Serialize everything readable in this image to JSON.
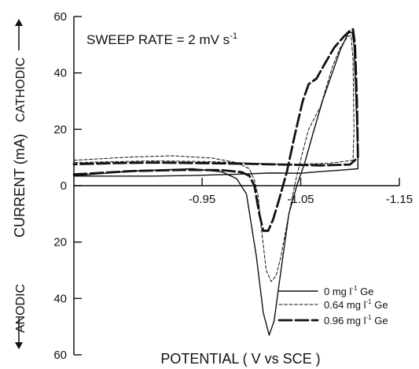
{
  "chart_data": {
    "type": "line",
    "annotation": {
      "prefix": "SWEEP RATE = 2 mV  s",
      "superscript": "-1"
    },
    "axes": {
      "x": {
        "label": "POTENTIAL  ( V vs SCE )",
        "range": [
          -0.82,
          -1.15
        ],
        "ticks": [
          -0.95,
          -1.05,
          -1.15
        ],
        "tick_labels": [
          "-0.95",
          "-1.05",
          "-1.15"
        ],
        "direction": "decreasing"
      },
      "y": {
        "label_main": "CURRENT (mA)",
        "label_upper": "CATHODIC",
        "label_lower": "ANODIC",
        "range": [
          -60,
          60
        ],
        "ticks": [
          60,
          40,
          20,
          0,
          -20,
          -40,
          -60
        ],
        "tick_labels": [
          "60",
          "40",
          "20",
          "0",
          "20",
          "40",
          "60"
        ]
      }
    },
    "legend": {
      "position": "bottom-right",
      "entries": [
        {
          "label_prefix": "0 mg l",
          "label_suffix": " Ge",
          "superscript": "-1",
          "style": "solid-thin"
        },
        {
          "label_prefix": "0.64 mg l",
          "label_suffix": " Ge",
          "superscript": "-1",
          "style": "dashed-short"
        },
        {
          "label_prefix": "0.96 mg l",
          "label_suffix": " Ge",
          "superscript": "-1",
          "style": "dashed-long"
        }
      ]
    },
    "series": [
      {
        "style": "solid-thin",
        "points": [
          [
            -0.82,
            3.5
          ],
          [
            -0.88,
            5.2
          ],
          [
            -0.94,
            6.0
          ],
          [
            -0.97,
            4.9
          ],
          [
            -0.985,
            2.5
          ],
          [
            -0.995,
            -3
          ],
          [
            -1.005,
            -25
          ],
          [
            -1.012,
            -45
          ],
          [
            -1.018,
            -53
          ],
          [
            -1.023,
            -48
          ],
          [
            -1.03,
            -30
          ],
          [
            -1.038,
            -10
          ],
          [
            -1.046,
            0
          ],
          [
            -1.054,
            8
          ],
          [
            -1.062,
            18
          ],
          [
            -1.072,
            30
          ],
          [
            -1.082,
            40
          ],
          [
            -1.09,
            48
          ],
          [
            -1.098,
            54
          ],
          [
            -1.102,
            54.5
          ],
          [
            -1.104,
            50
          ],
          [
            -1.106,
            30
          ],
          [
            -1.108,
            10
          ],
          [
            -1.108,
            6
          ],
          [
            -1.09,
            5.5
          ],
          [
            -1.07,
            5.0
          ],
          [
            -1.05,
            4.4
          ],
          [
            -1.02,
            4.5
          ],
          [
            -0.98,
            4.0
          ],
          [
            -0.94,
            3.6
          ],
          [
            -0.9,
            3.4
          ],
          [
            -0.82,
            3.4
          ]
        ]
      },
      {
        "style": "dashed-short",
        "points": [
          [
            -0.82,
            9
          ],
          [
            -0.88,
            10.2
          ],
          [
            -0.92,
            10.6
          ],
          [
            -0.96,
            9.8
          ],
          [
            -0.985,
            8.2
          ],
          [
            -0.998,
            6
          ],
          [
            -1.003,
            2
          ],
          [
            -1.007,
            -4
          ],
          [
            -1.01,
            -15
          ],
          [
            -1.015,
            -30
          ],
          [
            -1.02,
            -34
          ],
          [
            -1.025,
            -32
          ],
          [
            -1.03,
            -25
          ],
          [
            -1.038,
            -10
          ],
          [
            -1.045,
            2
          ],
          [
            -1.052,
            12
          ],
          [
            -1.058,
            20
          ],
          [
            -1.064,
            24
          ],
          [
            -1.07,
            28
          ],
          [
            -1.076,
            35
          ],
          [
            -1.082,
            42
          ],
          [
            -1.09,
            49
          ],
          [
            -1.098,
            53
          ],
          [
            -1.101,
            53.2
          ],
          [
            -1.103,
            45
          ],
          [
            -1.104,
            20
          ],
          [
            -1.103,
            9
          ],
          [
            -1.08,
            8
          ],
          [
            -1.05,
            7.6
          ],
          [
            -1.03,
            7.6
          ],
          [
            -1.0,
            8
          ],
          [
            -0.96,
            8.5
          ],
          [
            -0.9,
            8.8
          ],
          [
            -0.82,
            8.2
          ]
        ]
      },
      {
        "style": "dashed-long",
        "points": [
          [
            -0.82,
            4
          ],
          [
            -0.88,
            5.2
          ],
          [
            -0.93,
            5.6
          ],
          [
            -0.97,
            5.5
          ],
          [
            -0.99,
            4.8
          ],
          [
            -0.998,
            3.5
          ],
          [
            -1.003,
            0
          ],
          [
            -1.008,
            -10
          ],
          [
            -1.012,
            -16
          ],
          [
            -1.017,
            -16
          ],
          [
            -1.022,
            -12
          ],
          [
            -1.028,
            -5
          ],
          [
            -1.036,
            5
          ],
          [
            -1.044,
            18
          ],
          [
            -1.052,
            30
          ],
          [
            -1.058,
            36
          ],
          [
            -1.066,
            38
          ],
          [
            -1.074,
            43
          ],
          [
            -1.084,
            49
          ],
          [
            -1.094,
            53
          ],
          [
            -1.1,
            55
          ],
          [
            -1.103,
            55.5
          ],
          [
            -1.105,
            50
          ],
          [
            -1.107,
            30
          ],
          [
            -1.108,
            10
          ],
          [
            -1.1,
            7.5
          ],
          [
            -1.07,
            7.2
          ],
          [
            -1.03,
            7.5
          ],
          [
            -0.99,
            7.8
          ],
          [
            -0.95,
            8
          ],
          [
            -0.9,
            8.2
          ],
          [
            -0.86,
            8
          ],
          [
            -0.82,
            7.6
          ]
        ]
      }
    ]
  }
}
